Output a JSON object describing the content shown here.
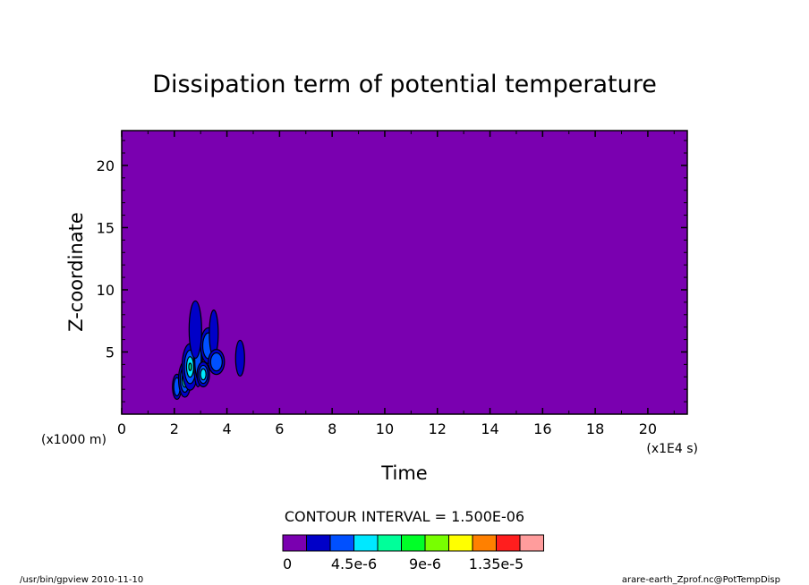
{
  "chart_data": {
    "type": "heatmap",
    "title": "Dissipation term of potential temperature",
    "xlabel": "Time",
    "ylabel": "Z-coordinate",
    "x_unit": "(x1E4 s)",
    "y_unit": "(x1000 m)",
    "xlim": [
      0,
      21.5
    ],
    "ylim": [
      0,
      22.8
    ],
    "x_ticks": [
      "0",
      "2",
      "4",
      "6",
      "8",
      "10",
      "12",
      "14",
      "16",
      "18",
      "20"
    ],
    "y_ticks": [
      "5",
      "10",
      "15",
      "20"
    ],
    "contour_interval": "CONTOUR INTERVAL = 1.500E-06",
    "colorbar": {
      "colors": [
        "#7a00b0",
        "#0000c8",
        "#0050ff",
        "#00e8ff",
        "#00ff9a",
        "#00ff28",
        "#78ff00",
        "#ffff00",
        "#ff8000",
        "#ff1e1e",
        "#ff9c9c"
      ],
      "labels": [
        "0",
        "4.5e-6",
        "9e-6",
        "1.35e-5"
      ]
    },
    "background_color": "#7a00b0",
    "features": [
      {
        "x": 2.1,
        "y": 2.2,
        "level": 2
      },
      {
        "x": 2.4,
        "y": 2.8,
        "level": 3
      },
      {
        "x": 2.6,
        "y": 3.8,
        "level": 4
      },
      {
        "x": 2.9,
        "y": 4.5,
        "level": 2
      },
      {
        "x": 3.1,
        "y": 3.2,
        "level": 3
      },
      {
        "x": 3.3,
        "y": 5.5,
        "level": 2
      },
      {
        "x": 3.5,
        "y": 6.5,
        "level": 1
      },
      {
        "x": 2.8,
        "y": 6.8,
        "level": 1
      },
      {
        "x": 3.6,
        "y": 4.2,
        "level": 2
      },
      {
        "x": 4.5,
        "y": 4.5,
        "level": 1
      }
    ]
  },
  "footer": {
    "left": "/usr/bin/gpview  2010-11-10",
    "right": "arare-earth_Zprof.nc@PotTempDisp"
  }
}
